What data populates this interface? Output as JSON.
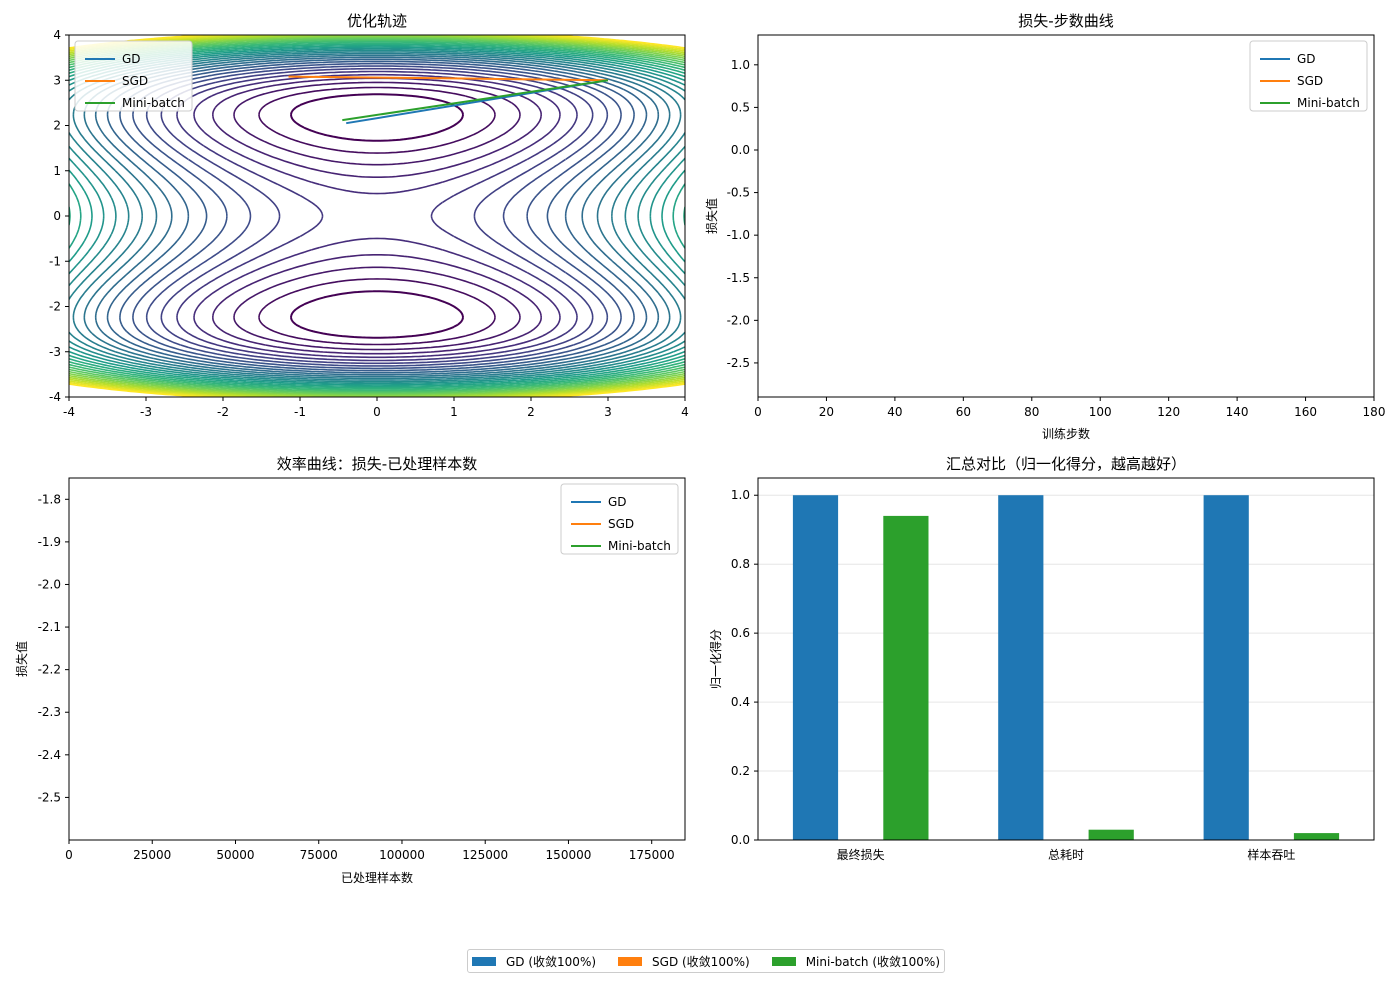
{
  "colors": {
    "GD": "#1f77b4",
    "SGD": "#ff7f0e",
    "Mini-batch": "#2ca02c",
    "contour_colormap": "viridis"
  },
  "chart_data": [
    {
      "id": "trajectory",
      "type": "contour+line",
      "title": "优化轨迹",
      "xlabel": "",
      "ylabel": "",
      "xlim": [
        -4,
        4
      ],
      "ylim": [
        -4,
        4
      ],
      "xticks": [
        -4,
        -3,
        -2,
        -1,
        0,
        1,
        2,
        3,
        4
      ],
      "yticks": [
        -4,
        -3,
        -2,
        -1,
        0,
        1,
        2,
        3,
        4
      ],
      "contour_colormap": "viridis",
      "legend": {
        "position": "top-left",
        "entries": [
          "GD",
          "SGD",
          "Mini-batch"
        ]
      },
      "series": [
        {
          "name": "GD",
          "x": [
            3.0,
            -0.4
          ],
          "y": [
            3.0,
            2.05
          ]
        },
        {
          "name": "SGD",
          "x": [
            3.0,
            1.0,
            -1.15
          ],
          "y": [
            3.0,
            3.04,
            3.08
          ]
        },
        {
          "name": "Mini-batch",
          "x": [
            3.0,
            -0.45
          ],
          "y": [
            3.0,
            2.12
          ]
        }
      ]
    },
    {
      "id": "loss_steps",
      "type": "line",
      "title": "损失-步数曲线",
      "xlabel": "训练步数",
      "ylabel": "损失值",
      "xlim": [
        0,
        180
      ],
      "ylim": [
        -2.9,
        1.35
      ],
      "xticks": [
        0,
        20,
        40,
        60,
        80,
        100,
        120,
        140,
        160,
        180
      ],
      "yticks": [
        1.0,
        0.5,
        0.0,
        -0.5,
        -1.0,
        -1.5,
        -2.0,
        -2.5
      ],
      "legend": {
        "position": "top-right",
        "entries": [
          "GD",
          "SGD",
          "Mini-batch"
        ]
      },
      "series": [
        {
          "name": "GD",
          "x": [],
          "y": []
        },
        {
          "name": "SGD",
          "x": [],
          "y": []
        },
        {
          "name": "Mini-batch",
          "x": [],
          "y": []
        }
      ]
    },
    {
      "id": "efficiency",
      "type": "line",
      "title": "效率曲线：损失-已处理样本数",
      "xlabel": "已处理样本数",
      "ylabel": "损失值",
      "xlim": [
        0,
        185000
      ],
      "ylim": [
        -2.6,
        -1.75
      ],
      "xticks": [
        0,
        25000,
        50000,
        75000,
        100000,
        125000,
        150000,
        175000
      ],
      "yticks": [
        -1.8,
        -1.9,
        -2.0,
        -2.1,
        -2.2,
        -2.3,
        -2.4,
        -2.5
      ],
      "legend": {
        "position": "top-right",
        "entries": [
          "GD",
          "SGD",
          "Mini-batch"
        ]
      },
      "series": [
        {
          "name": "GD",
          "x": [],
          "y": []
        },
        {
          "name": "SGD",
          "x": [],
          "y": []
        },
        {
          "name": "Mini-batch",
          "x": [],
          "y": []
        }
      ]
    },
    {
      "id": "summary",
      "type": "bar",
      "title": "汇总对比（归一化得分，越高越好）",
      "xlabel": "",
      "ylabel": "归一化得分",
      "ylim": [
        0,
        1.05
      ],
      "yticks": [
        0.0,
        0.2,
        0.4,
        0.6,
        0.8,
        1.0
      ],
      "grid": true,
      "categories": [
        "最终损失",
        "总耗时",
        "样本吞吐"
      ],
      "series": [
        {
          "name": "GD",
          "values": [
            1.0,
            1.0,
            1.0
          ]
        },
        {
          "name": "SGD",
          "values": [
            0.0,
            0.0,
            0.0
          ]
        },
        {
          "name": "Mini-batch",
          "values": [
            0.94,
            0.03,
            0.02
          ]
        }
      ]
    }
  ],
  "figure_legend": {
    "position": "bottom-center",
    "items": [
      {
        "series": "GD",
        "label": "GD (收敛100%)"
      },
      {
        "series": "SGD",
        "label": "SGD (收敛100%)"
      },
      {
        "series": "Mini-batch",
        "label": "Mini-batch (收敛100%)"
      }
    ]
  }
}
